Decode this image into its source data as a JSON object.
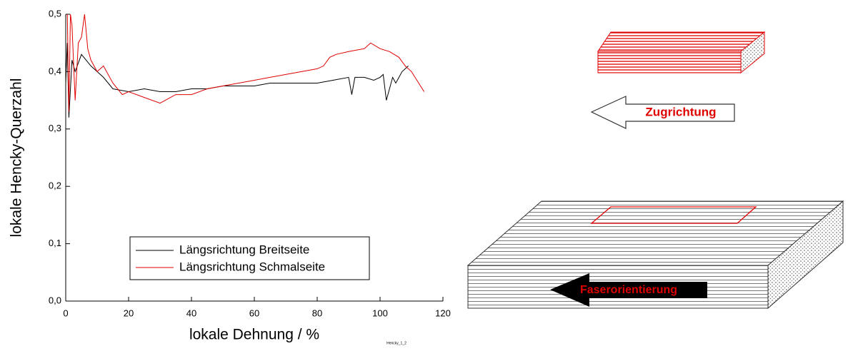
{
  "chart_data": {
    "type": "line",
    "x_label": "lokale Dehnung / %",
    "y_label": "lokale Hencky-Querzahl",
    "note": "Hencky_1_2",
    "xlim": [
      0,
      120
    ],
    "xticks": [
      0,
      20,
      40,
      60,
      80,
      100,
      120
    ],
    "ylim": [
      0,
      0.5
    ],
    "yticks": [
      {
        "value": 0,
        "label": "0,0"
      },
      {
        "value": 0.1,
        "label": "0,1"
      },
      {
        "value": 0.2,
        "label": "0,2"
      },
      {
        "value": 0.3,
        "label": "0,3"
      },
      {
        "value": 0.4,
        "label": "0,4"
      },
      {
        "value": 0.5,
        "label": "0,5"
      }
    ],
    "legend": "lower-center",
    "series": [
      {
        "name": "Längsrichtung Breitseite",
        "color": "#000000",
        "x": [
          0,
          0.5,
          1,
          2,
          3,
          5,
          8,
          12,
          15,
          20,
          25,
          30,
          35,
          40,
          45,
          50,
          55,
          60,
          65,
          70,
          75,
          80,
          85,
          90,
          91,
          92,
          95,
          98,
          100,
          101,
          102,
          104,
          105,
          107,
          109
        ],
        "values": [
          0.38,
          0.45,
          0.32,
          0.42,
          0.4,
          0.43,
          0.41,
          0.39,
          0.37,
          0.365,
          0.37,
          0.365,
          0.365,
          0.37,
          0.37,
          0.375,
          0.375,
          0.375,
          0.38,
          0.38,
          0.38,
          0.38,
          0.385,
          0.39,
          0.36,
          0.39,
          0.39,
          0.385,
          0.39,
          0.395,
          0.35,
          0.39,
          0.38,
          0.4,
          0.41
        ]
      },
      {
        "name": "Längsrichtung Schmalseite",
        "color": "#e00000",
        "x": [
          0.5,
          1,
          1.5,
          2,
          3,
          4,
          5,
          6,
          7,
          8,
          10,
          12,
          15,
          18,
          20,
          25,
          30,
          35,
          40,
          45,
          50,
          55,
          60,
          65,
          70,
          75,
          80,
          82,
          84,
          86,
          90,
          95,
          97,
          100,
          103,
          106,
          108,
          110,
          114
        ],
        "values": [
          0.5,
          0.33,
          0.5,
          0.48,
          0.35,
          0.45,
          0.46,
          0.5,
          0.44,
          0.42,
          0.4,
          0.41,
          0.38,
          0.36,
          0.365,
          0.355,
          0.345,
          0.36,
          0.36,
          0.37,
          0.375,
          0.38,
          0.385,
          0.39,
          0.395,
          0.4,
          0.405,
          0.41,
          0.425,
          0.43,
          0.435,
          0.44,
          0.45,
          0.44,
          0.435,
          0.425,
          0.41,
          0.4,
          0.365
        ]
      }
    ]
  },
  "diagram": {
    "labels": [
      "Zugrichtung",
      "Faserorientierung"
    ]
  }
}
